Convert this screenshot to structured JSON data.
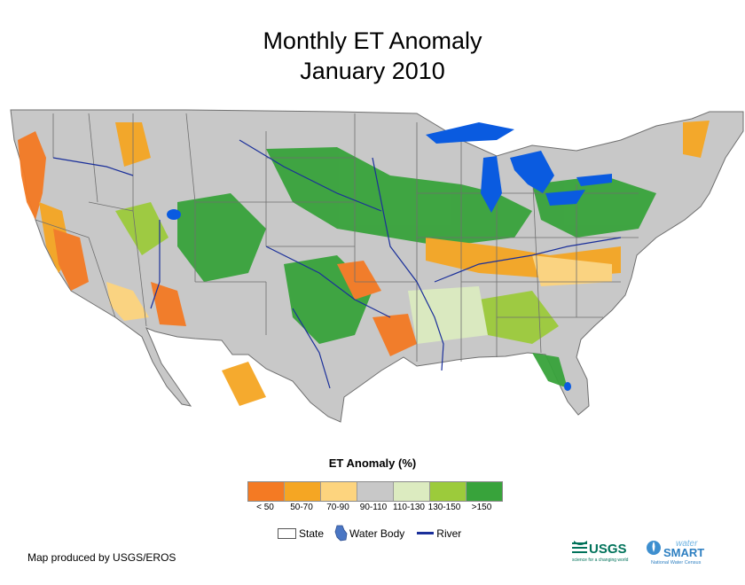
{
  "title": "Monthly ET Anomaly",
  "subtitle": "January 2010",
  "legend": {
    "title": "ET Anomaly (%)",
    "classes": [
      {
        "label": "< 50",
        "color": "#f47a23"
      },
      {
        "label": "50-70",
        "color": "#f5a623"
      },
      {
        "label": "70-90",
        "color": "#fdd47e"
      },
      {
        "label": "90-110",
        "color": "#c8c8c8"
      },
      {
        "label": "110-130",
        "color": "#dcebc0"
      },
      {
        "label": "130-150",
        "color": "#9ccb3b"
      },
      {
        "label": ">150",
        "color": "#38a33b"
      }
    ],
    "symbols": {
      "state": "State",
      "water_body": "Water Body",
      "river": "River"
    }
  },
  "colors": {
    "water": "#0a5be0",
    "river": "#1a2f9a",
    "background_land": "#c8c8c8",
    "state_border": "#6f6f6f"
  },
  "credit": "Map produced by USGS/EROS",
  "logos": {
    "usgs": "USGS",
    "usgs_tagline": "science for a changing world",
    "watersmart_top": "water",
    "watersmart_main": "SMART",
    "watersmart_sub": "National Water Census"
  }
}
